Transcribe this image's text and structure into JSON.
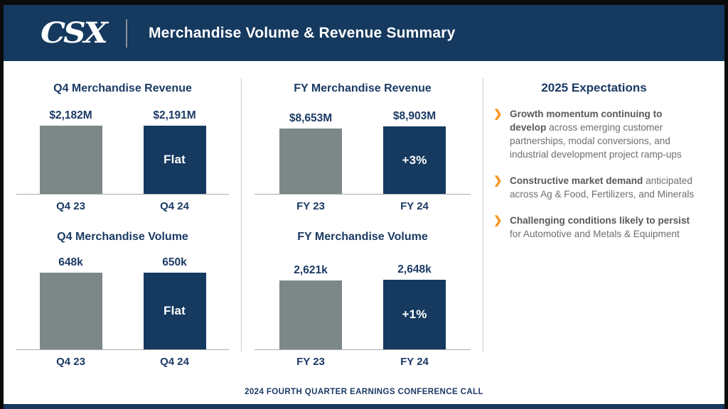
{
  "colors": {
    "navy": "#15395F",
    "gray": "#7C8787",
    "txtnavy": "#1B3A64",
    "orange": "#F7941E",
    "gbold": "#58595B",
    "gtext": "#6D6E71"
  },
  "header": {
    "logo": "CSX",
    "title": "Merchandise Volume & Revenue Summary"
  },
  "charts": [
    {
      "type": "bar",
      "title": "Q4 Merchandise Revenue",
      "bars": [
        {
          "label": "Q4 23",
          "value": 2182,
          "display": "$2,182M",
          "color": "gray",
          "annotation": ""
        },
        {
          "label": "Q4 24",
          "value": 2191,
          "display": "$2,191M",
          "color": "navy",
          "annotation": "Flat"
        }
      ]
    },
    {
      "type": "bar",
      "title": "Q4 Merchandise Volume",
      "bars": [
        {
          "label": "Q4 23",
          "value": 648,
          "display": "648k",
          "color": "gray",
          "annotation": ""
        },
        {
          "label": "Q4 24",
          "value": 650,
          "display": "650k",
          "color": "navy",
          "annotation": "Flat"
        }
      ]
    },
    {
      "type": "bar",
      "title": "FY Merchandise Revenue",
      "bars": [
        {
          "label": "FY 23",
          "value": 8653,
          "display": "$8,653M",
          "color": "gray",
          "annotation": ""
        },
        {
          "label": "FY 24",
          "value": 8903,
          "display": "$8,903M",
          "color": "navy",
          "annotation": "+3%"
        }
      ]
    },
    {
      "type": "bar",
      "title": "FY Merchandise Volume",
      "bars": [
        {
          "label": "FY 23",
          "value": 2621,
          "display": "2,621k",
          "color": "gray",
          "annotation": ""
        },
        {
          "label": "FY 24",
          "value": 2648,
          "display": "2,648k",
          "color": "navy",
          "annotation": "+1%"
        }
      ]
    }
  ],
  "chart_data": [
    {
      "type": "bar",
      "title": "Q4 Merchandise Revenue",
      "categories": [
        "Q4 23",
        "Q4 24"
      ],
      "values": [
        2182,
        2191
      ],
      "value_labels": [
        "$2,182M",
        "$2,191M"
      ],
      "change_label": "Flat"
    },
    {
      "type": "bar",
      "title": "Q4 Merchandise Volume",
      "categories": [
        "Q4 23",
        "Q4 24"
      ],
      "values": [
        648,
        650
      ],
      "value_labels": [
        "648k",
        "650k"
      ],
      "change_label": "Flat"
    },
    {
      "type": "bar",
      "title": "FY Merchandise Revenue",
      "categories": [
        "FY 23",
        "FY 24"
      ],
      "values": [
        8653,
        8903
      ],
      "value_labels": [
        "$8,653M",
        "$8,903M"
      ],
      "change_label": "+3%"
    },
    {
      "type": "bar",
      "title": "FY Merchandise Volume",
      "categories": [
        "FY 23",
        "FY 24"
      ],
      "values": [
        2621,
        2648
      ],
      "value_labels": [
        "2,621k",
        "2,648k"
      ],
      "change_label": "+1%"
    }
  ],
  "expectations": {
    "title": "2025 Expectations",
    "bullets": [
      {
        "bold": "Growth momentum continuing to develop",
        "rest": " across emerging customer partnerships, modal conversions, and industrial development project ramp-ups"
      },
      {
        "bold": "Constructive market demand",
        "rest": " anticipated across Ag & Food, Fertilizers, and Minerals"
      },
      {
        "bold": "Challenging conditions likely to persist",
        "rest": " for Automotive and Metals & Equipment"
      }
    ]
  },
  "footer": {
    "text": "2024 FOURTH QUARTER EARNINGS CONFERENCE CALL"
  }
}
